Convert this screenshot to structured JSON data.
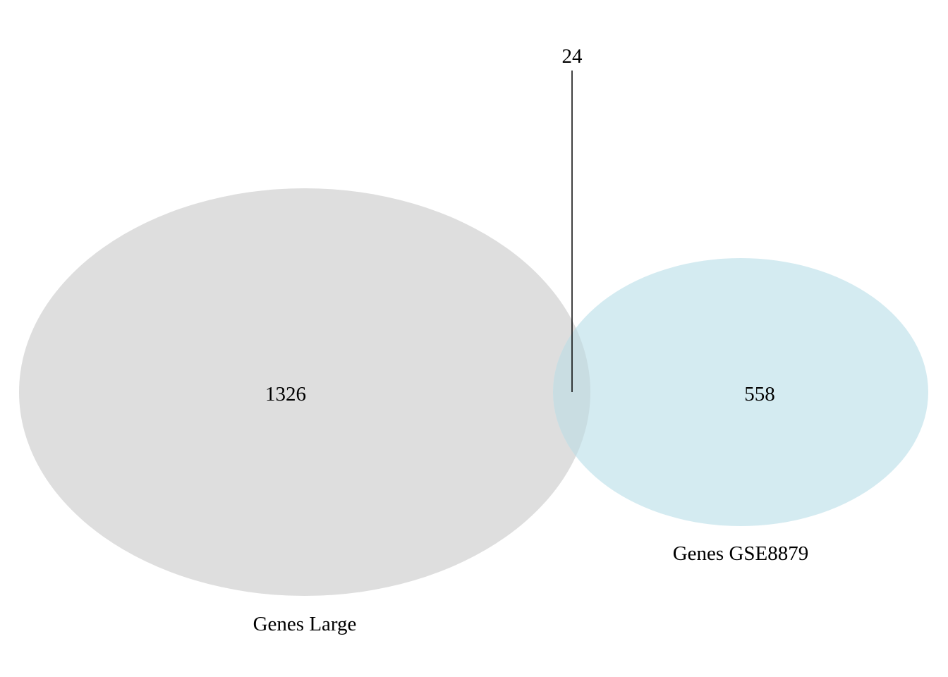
{
  "sets": [
    {
      "name": "Genes Large",
      "count": "1326",
      "color": "#dedede"
    },
    {
      "name": "Genes GSE8879",
      "count": "558",
      "color": "#d4ebf1"
    }
  ],
  "intersection": {
    "count": "24"
  },
  "colors": {
    "overlap": "#c9dde2",
    "text": "#000000",
    "leader_line": "#000000"
  }
}
